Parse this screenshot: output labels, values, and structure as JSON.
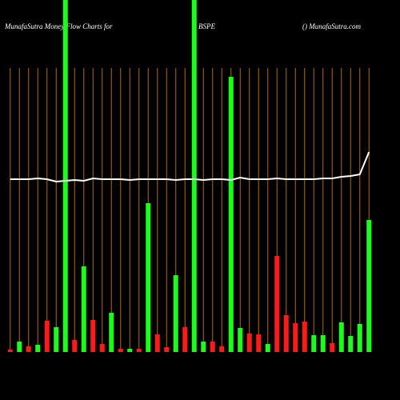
{
  "chart_data": {
    "type": "bar",
    "title_left": "MunafaSutra  Money Flow  Charts for",
    "title_center": "BSPE",
    "title_right": "() MunafaSutra.com",
    "categories": [
      null,
      null,
      null,
      null,
      null,
      null,
      null,
      null,
      null,
      null,
      null,
      null,
      null,
      null,
      null,
      null,
      null,
      null,
      null,
      null,
      null,
      null,
      null,
      null,
      null,
      null,
      null,
      null,
      null,
      null,
      null,
      null,
      null,
      null,
      null,
      null,
      null,
      null,
      null,
      null
    ],
    "series": [
      {
        "name": "money flow",
        "values": [
          3,
          13,
          7,
          9,
          39,
          31,
          440,
          15,
          107,
          40,
          10,
          49,
          4,
          4,
          4,
          186,
          22,
          6,
          96,
          31,
          440,
          13,
          13,
          7,
          344,
          30,
          23,
          22,
          10,
          120,
          46,
          36,
          38,
          21,
          21,
          11,
          37,
          20,
          35,
          165
        ],
        "colors": [
          "#ff1a1a",
          "#1aff1a",
          "#ff1a1a",
          "#1aff1a",
          "#ff1a1a",
          "#1aff1a",
          "#1aff1a",
          "#ff1a1a",
          "#1aff1a",
          "#ff1a1a",
          "#ff1a1a",
          "#1aff1a",
          "#ff1a1a",
          "#1aff1a",
          "#ff1a1a",
          "#1aff1a",
          "#ff1a1a",
          "#ff1a1a",
          "#1aff1a",
          "#ff1a1a",
          "#1aff1a",
          "#1aff1a",
          "#ff1a1a",
          "#ff1a1a",
          "#1aff1a",
          "#1aff1a",
          "#ff1a1a",
          "#ff1a1a",
          "#1aff1a",
          "#ff1a1a",
          "#ff1a1a",
          "#ff1a1a",
          "#ff1a1a",
          "#1aff1a",
          "#1aff1a",
          "#ff1a1a",
          "#1aff1a",
          "#1aff1a",
          "#1aff1a",
          "#1aff1a"
        ]
      },
      {
        "name": "price",
        "color": "#ffffff",
        "values": [
          216,
          216,
          216,
          217,
          216,
          213,
          214,
          215,
          214,
          217,
          216,
          216,
          216,
          215,
          216,
          216,
          216,
          216,
          215,
          216,
          216,
          215,
          216,
          216,
          215,
          218,
          216,
          216,
          216,
          217,
          216,
          216,
          216,
          216,
          217,
          217,
          219,
          220,
          222,
          250
        ]
      }
    ],
    "ylim": [
      0,
      440
    ],
    "grid_color": "#b8680f"
  }
}
